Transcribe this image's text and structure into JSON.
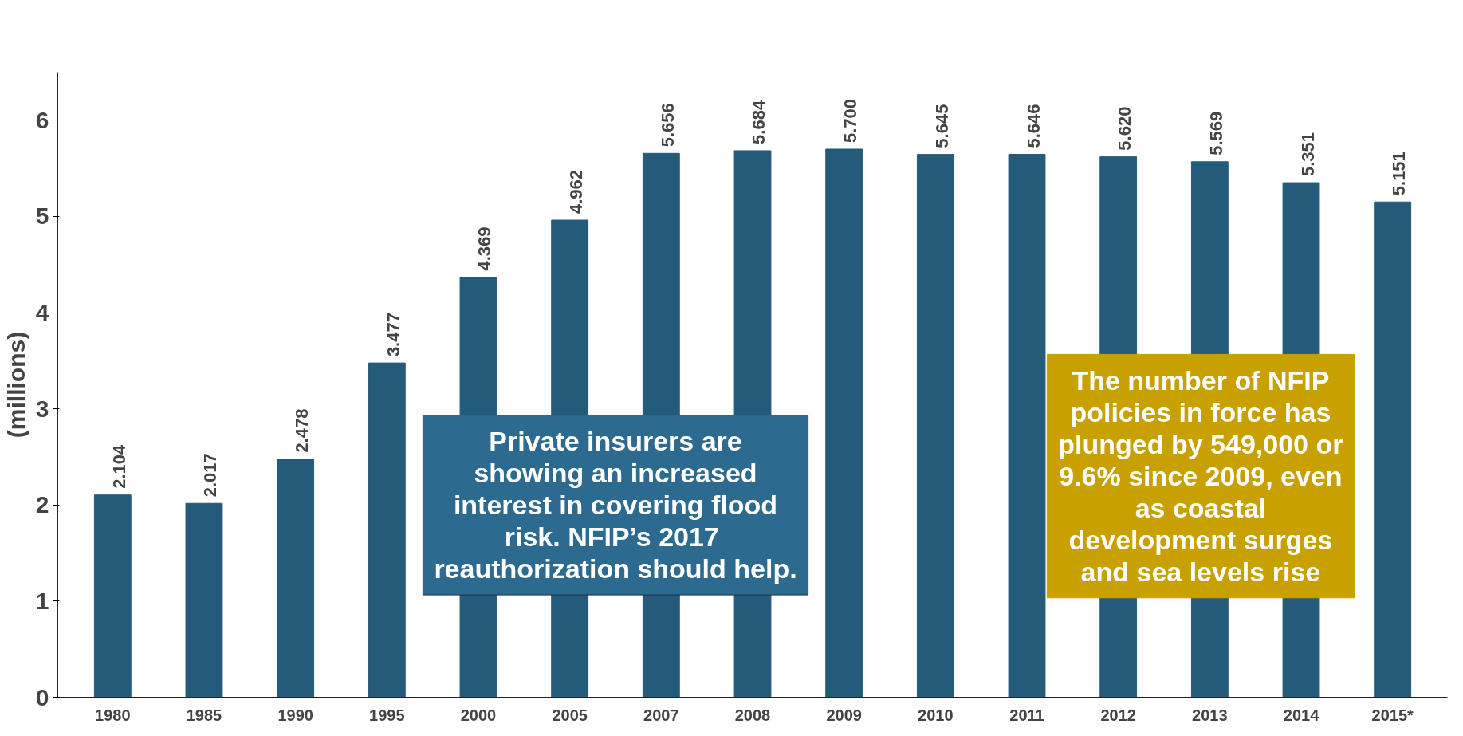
{
  "chart_data": {
    "type": "bar",
    "ylabel": "(millions)",
    "categories": [
      "1980",
      "1985",
      "1990",
      "1995",
      "2000",
      "2005",
      "2007",
      "2008",
      "2009",
      "2010",
      "2011",
      "2012",
      "2013",
      "2014",
      "2015*"
    ],
    "values": [
      2.104,
      2.017,
      2.478,
      3.477,
      4.369,
      4.962,
      5.656,
      5.684,
      5.7,
      5.645,
      5.646,
      5.62,
      5.569,
      5.351,
      5.151
    ],
    "color": "#245b7b",
    "ylim": [
      0,
      6.5
    ],
    "yticks": [
      0,
      1,
      2,
      3,
      4,
      5,
      6
    ],
    "grid": false,
    "data_labels": true,
    "value_labels": [
      "2.104",
      "2.017",
      "2.478",
      "3.477",
      "4.369",
      "4.962",
      "5.656",
      "5.684",
      "5.700",
      "5.645",
      "5.646",
      "5.620",
      "5.569",
      "5.351",
      "5.151"
    ],
    "annotations": [
      "Private insurers are\nshowing an increased\ninterest in covering flood\nrisk.  NFIP’s 2017\nreauthorization should help.",
      "The number of NFIP\npolicies in force has\nplunged by 549,000 or\n9.6% since 2009, even\nas coastal\ndevelopment surges\nand sea levels rise"
    ]
  }
}
